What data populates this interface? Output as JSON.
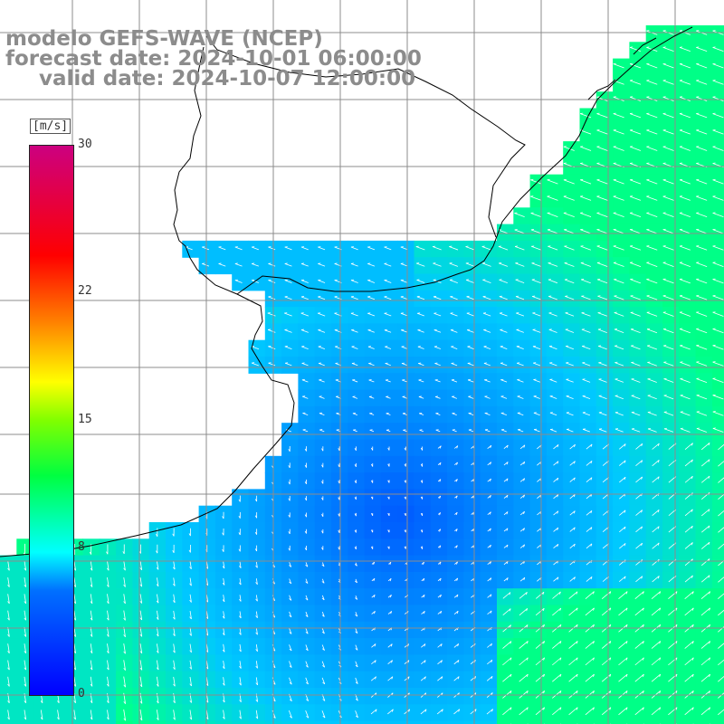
{
  "header": {
    "model": "modelo GEFS-WAVE (NCEP)",
    "forecast": "forecast date: 2024-10-01 06:00:00",
    "valid": "valid date: 2024-10-07 12:00:00"
  },
  "colorbar": {
    "unit": "[m/s]",
    "ticks": [
      "30",
      "22",
      "15",
      "8",
      "0"
    ],
    "tick_values": [
      30,
      22,
      15,
      8,
      0
    ],
    "min": 0,
    "max": 30
  },
  "colors": {
    "land": "#ffffff",
    "coast": "#000000",
    "grid": "#8c8c8c",
    "arrows": "#ffffff",
    "header_text": "#8c8c8c"
  }
}
